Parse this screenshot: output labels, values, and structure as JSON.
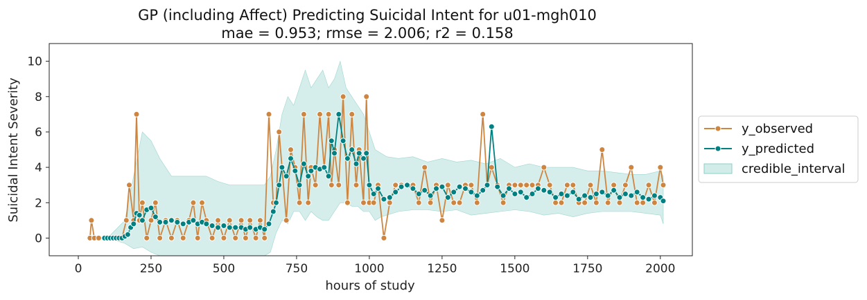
{
  "chart_data": {
    "type": "line",
    "title": "GP (including Affect) Predicting Suicidal Intent for u01-mgh010",
    "subtitle": "mae = 0.953; rmse = 2.006; r2 = 0.158",
    "xlabel": "hours of study",
    "ylabel": "Suicidal Intent Severity",
    "xlim": [
      -100,
      2110
    ],
    "ylim": [
      -1,
      11
    ],
    "xticks": [
      0,
      250,
      500,
      750,
      1000,
      1250,
      1500,
      1750,
      2000
    ],
    "yticks": [
      0,
      2,
      4,
      6,
      8,
      10
    ],
    "grid": false,
    "legend_position": "right, outside plot",
    "legend": [
      "y_observed",
      "y_predicted",
      "credible_interval"
    ],
    "colors": {
      "observed": "#cd853f",
      "predicted": "#008080",
      "interval": "#b2dfdb"
    },
    "series": [
      {
        "name": "y_observed",
        "x": [
          40,
          45,
          55,
          70,
          90,
          110,
          130,
          150,
          165,
          175,
          190,
          200,
          210,
          220,
          235,
          250,
          265,
          280,
          300,
          320,
          340,
          360,
          380,
          395,
          410,
          425,
          440,
          460,
          480,
          500,
          520,
          540,
          560,
          575,
          590,
          610,
          625,
          640,
          655,
          670,
          680,
          690,
          700,
          715,
          730,
          745,
          760,
          775,
          790,
          800,
          815,
          830,
          845,
          860,
          870,
          880,
          895,
          910,
          925,
          940,
          955,
          965,
          980,
          990,
          1000,
          1015,
          1030,
          1050,
          1070,
          1090,
          1110,
          1130,
          1150,
          1170,
          1190,
          1210,
          1230,
          1250,
          1270,
          1290,
          1310,
          1330,
          1350,
          1370,
          1390,
          1405,
          1420,
          1440,
          1460,
          1480,
          1500,
          1520,
          1540,
          1560,
          1580,
          1600,
          1620,
          1640,
          1660,
          1680,
          1700,
          1720,
          1740,
          1760,
          1780,
          1800,
          1820,
          1840,
          1860,
          1880,
          1900,
          1920,
          1940,
          1960,
          1980,
          2000,
          2010
        ],
        "values": [
          0,
          1,
          0,
          0,
          0,
          0,
          0,
          0,
          1,
          3,
          1,
          7,
          1,
          2,
          0,
          1,
          2,
          0,
          1,
          0,
          1,
          0,
          1,
          2,
          0,
          2,
          1,
          0,
          1,
          0,
          1,
          0,
          1,
          0,
          1,
          0,
          1,
          0,
          7,
          2,
          2,
          6,
          4,
          1,
          5,
          4,
          2,
          7,
          2,
          4,
          3,
          7,
          4,
          7,
          3,
          5,
          3,
          8,
          2,
          7,
          3,
          5,
          2,
          8,
          2,
          2,
          3,
          0,
          2,
          3,
          3,
          3,
          3,
          2,
          4,
          2,
          3,
          1,
          3,
          2,
          2,
          3,
          3,
          2,
          7,
          3,
          4,
          3,
          2,
          3,
          3,
          3,
          3,
          3,
          3,
          4,
          3,
          2,
          2,
          3,
          3,
          2,
          2,
          3,
          2,
          5,
          2,
          3,
          2,
          3,
          4,
          2,
          2,
          3,
          2,
          4,
          3
        ]
      },
      {
        "name": "y_predicted",
        "x": [
          90,
          100,
          110,
          120,
          130,
          140,
          150,
          160,
          170,
          180,
          190,
          200,
          210,
          220,
          235,
          250,
          265,
          280,
          300,
          320,
          340,
          360,
          380,
          395,
          410,
          425,
          440,
          460,
          480,
          500,
          520,
          540,
          560,
          575,
          590,
          610,
          625,
          640,
          655,
          670,
          680,
          690,
          700,
          715,
          730,
          745,
          760,
          775,
          790,
          800,
          815,
          830,
          845,
          860,
          870,
          880,
          895,
          910,
          925,
          940,
          955,
          965,
          980,
          990,
          1000,
          1015,
          1030,
          1050,
          1070,
          1090,
          1110,
          1130,
          1150,
          1170,
          1190,
          1210,
          1230,
          1250,
          1270,
          1290,
          1310,
          1330,
          1350,
          1370,
          1390,
          1405,
          1420,
          1440,
          1460,
          1480,
          1500,
          1520,
          1540,
          1560,
          1580,
          1600,
          1620,
          1640,
          1660,
          1680,
          1700,
          1720,
          1740,
          1760,
          1780,
          1800,
          1820,
          1840,
          1860,
          1880,
          1900,
          1920,
          1940,
          1960,
          1980,
          2000,
          2010
        ],
        "values": [
          0,
          0,
          0,
          0,
          0,
          0,
          0,
          0.1,
          0.2,
          0.6,
          0.8,
          1.4,
          1.3,
          1.0,
          1.6,
          1.7,
          1.2,
          0.9,
          0.9,
          1.0,
          0.9,
          0.8,
          0.9,
          1.0,
          0.8,
          0.9,
          0.8,
          0.7,
          0.6,
          0.7,
          0.6,
          0.6,
          0.6,
          0.5,
          0.6,
          0.5,
          0.6,
          0.5,
          0.8,
          1.5,
          2.0,
          3.0,
          4.0,
          3.5,
          4.5,
          3.8,
          3.0,
          4.2,
          3.5,
          3.8,
          4.0,
          3.9,
          4.0,
          3.5,
          5.5,
          4.8,
          7.0,
          5.5,
          4.5,
          5.0,
          4.2,
          4.8,
          4.5,
          4.8,
          3.0,
          2.5,
          2.8,
          2.2,
          2.3,
          2.6,
          2.9,
          3.0,
          2.8,
          2.5,
          2.7,
          2.4,
          2.8,
          2.9,
          2.3,
          2.6,
          2.9,
          2.8,
          2.6,
          2.4,
          2.7,
          3.0,
          6.3,
          2.9,
          2.4,
          2.8,
          2.5,
          2.6,
          2.3,
          2.5,
          2.8,
          2.7,
          2.6,
          2.3,
          2.5,
          2.4,
          2.6,
          2.2,
          2.4,
          2.3,
          2.5,
          2.6,
          2.4,
          2.7,
          2.3,
          2.5,
          2.4,
          2.6,
          2.3,
          2.2,
          2.4,
          2.3,
          2.1
        ]
      }
    ],
    "credible_interval": {
      "x": [
        40,
        100,
        160,
        190,
        220,
        250,
        280,
        320,
        360,
        400,
        440,
        480,
        520,
        560,
        600,
        640,
        660,
        680,
        700,
        720,
        740,
        760,
        780,
        800,
        820,
        840,
        860,
        880,
        900,
        920,
        940,
        960,
        980,
        1000,
        1020,
        1040,
        1060,
        1100,
        1150,
        1200,
        1250,
        1300,
        1350,
        1400,
        1450,
        1500,
        1550,
        1600,
        1650,
        1700,
        1750,
        1800,
        1850,
        1900,
        1950,
        2000,
        2010
      ],
      "lower": [
        0,
        0,
        -0.3,
        -0.6,
        -0.5,
        -0.8,
        -1.0,
        -1.0,
        -1.0,
        -1.0,
        -1.0,
        -1.0,
        -1.0,
        -1.0,
        -1.0,
        -1.0,
        -0.8,
        0.3,
        1.0,
        0.8,
        1.5,
        1.5,
        1.0,
        1.5,
        1.2,
        1.0,
        1.0,
        1.5,
        2.0,
        2.0,
        1.8,
        1.8,
        1.5,
        1.5,
        1.0,
        1.2,
        1.3,
        1.5,
        1.6,
        1.6,
        1.5,
        1.6,
        1.3,
        1.4,
        1.5,
        1.6,
        1.5,
        1.3,
        1.4,
        1.2,
        1.4,
        1.5,
        1.5,
        1.5,
        1.4,
        1.3,
        0.8
      ],
      "upper": [
        0,
        0,
        1.0,
        3.5,
        6.0,
        5.5,
        4.5,
        3.5,
        3.5,
        3.5,
        3.5,
        3.2,
        3.0,
        3.0,
        3.0,
        3.0,
        3.5,
        5.0,
        7.0,
        8.0,
        7.5,
        8.5,
        9.5,
        8.5,
        9.0,
        9.5,
        8.5,
        9.0,
        10.0,
        8.5,
        8.0,
        7.5,
        7.0,
        6.0,
        5.0,
        4.8,
        4.6,
        4.5,
        4.6,
        4.3,
        4.5,
        4.3,
        4.4,
        4.2,
        4.5,
        4.0,
        4.2,
        4.0,
        4.0,
        4.0,
        3.8,
        3.8,
        3.7,
        3.6,
        3.6,
        3.8,
        3.5
      ]
    }
  }
}
